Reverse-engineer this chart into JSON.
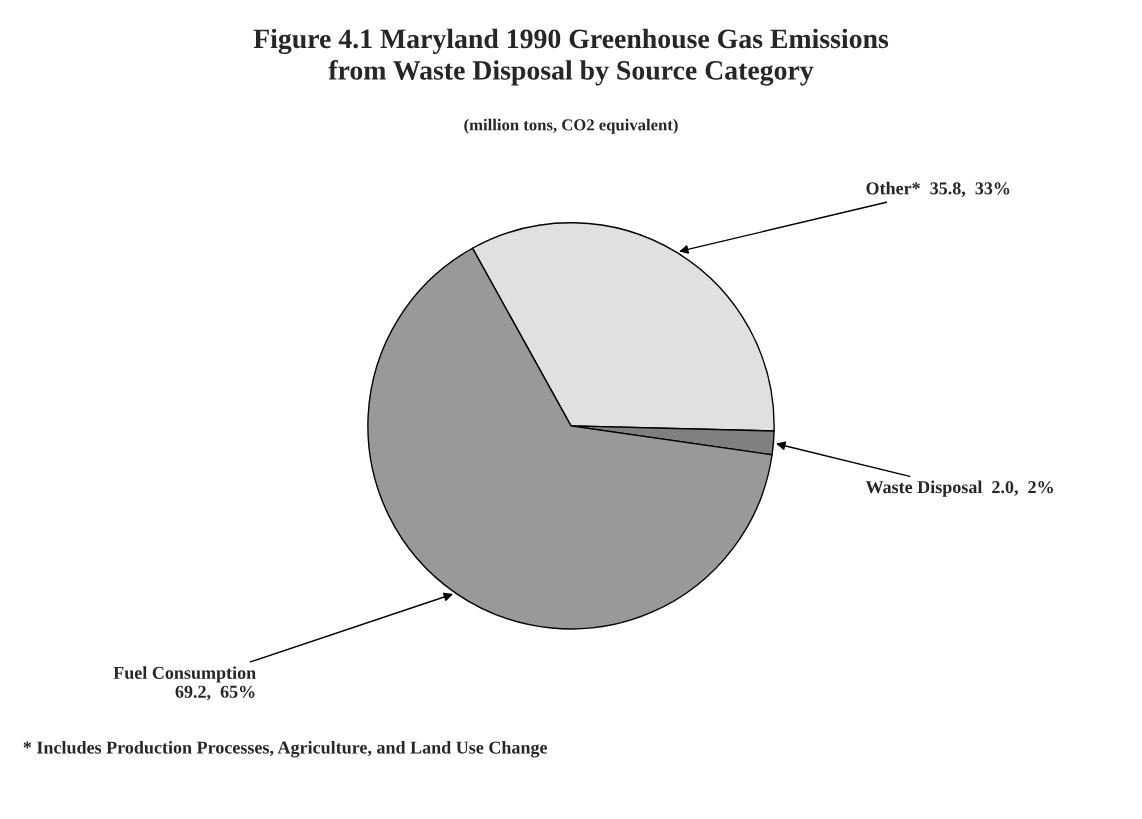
{
  "chart_data": {
    "type": "pie",
    "title": "Figure 4.1 Maryland 1990 Greenhouse Gas Emissions\nfrom Waste Disposal by Source Category",
    "subtitle": "(million tons, CO2 equivalent)",
    "categories": [
      "Other*",
      "Waste Disposal",
      "Fuel Consumption"
    ],
    "values": [
      35.8,
      2.0,
      69.2
    ],
    "value_labels": [
      "35.8,  33%",
      "2.0,  2%",
      "69.2,  65%"
    ],
    "colors": [
      "#e0e0e0",
      "#808080",
      "#999999"
    ],
    "annotations": [
      "* Includes Production Processes, Agriculture, and Land Use Change"
    ]
  }
}
